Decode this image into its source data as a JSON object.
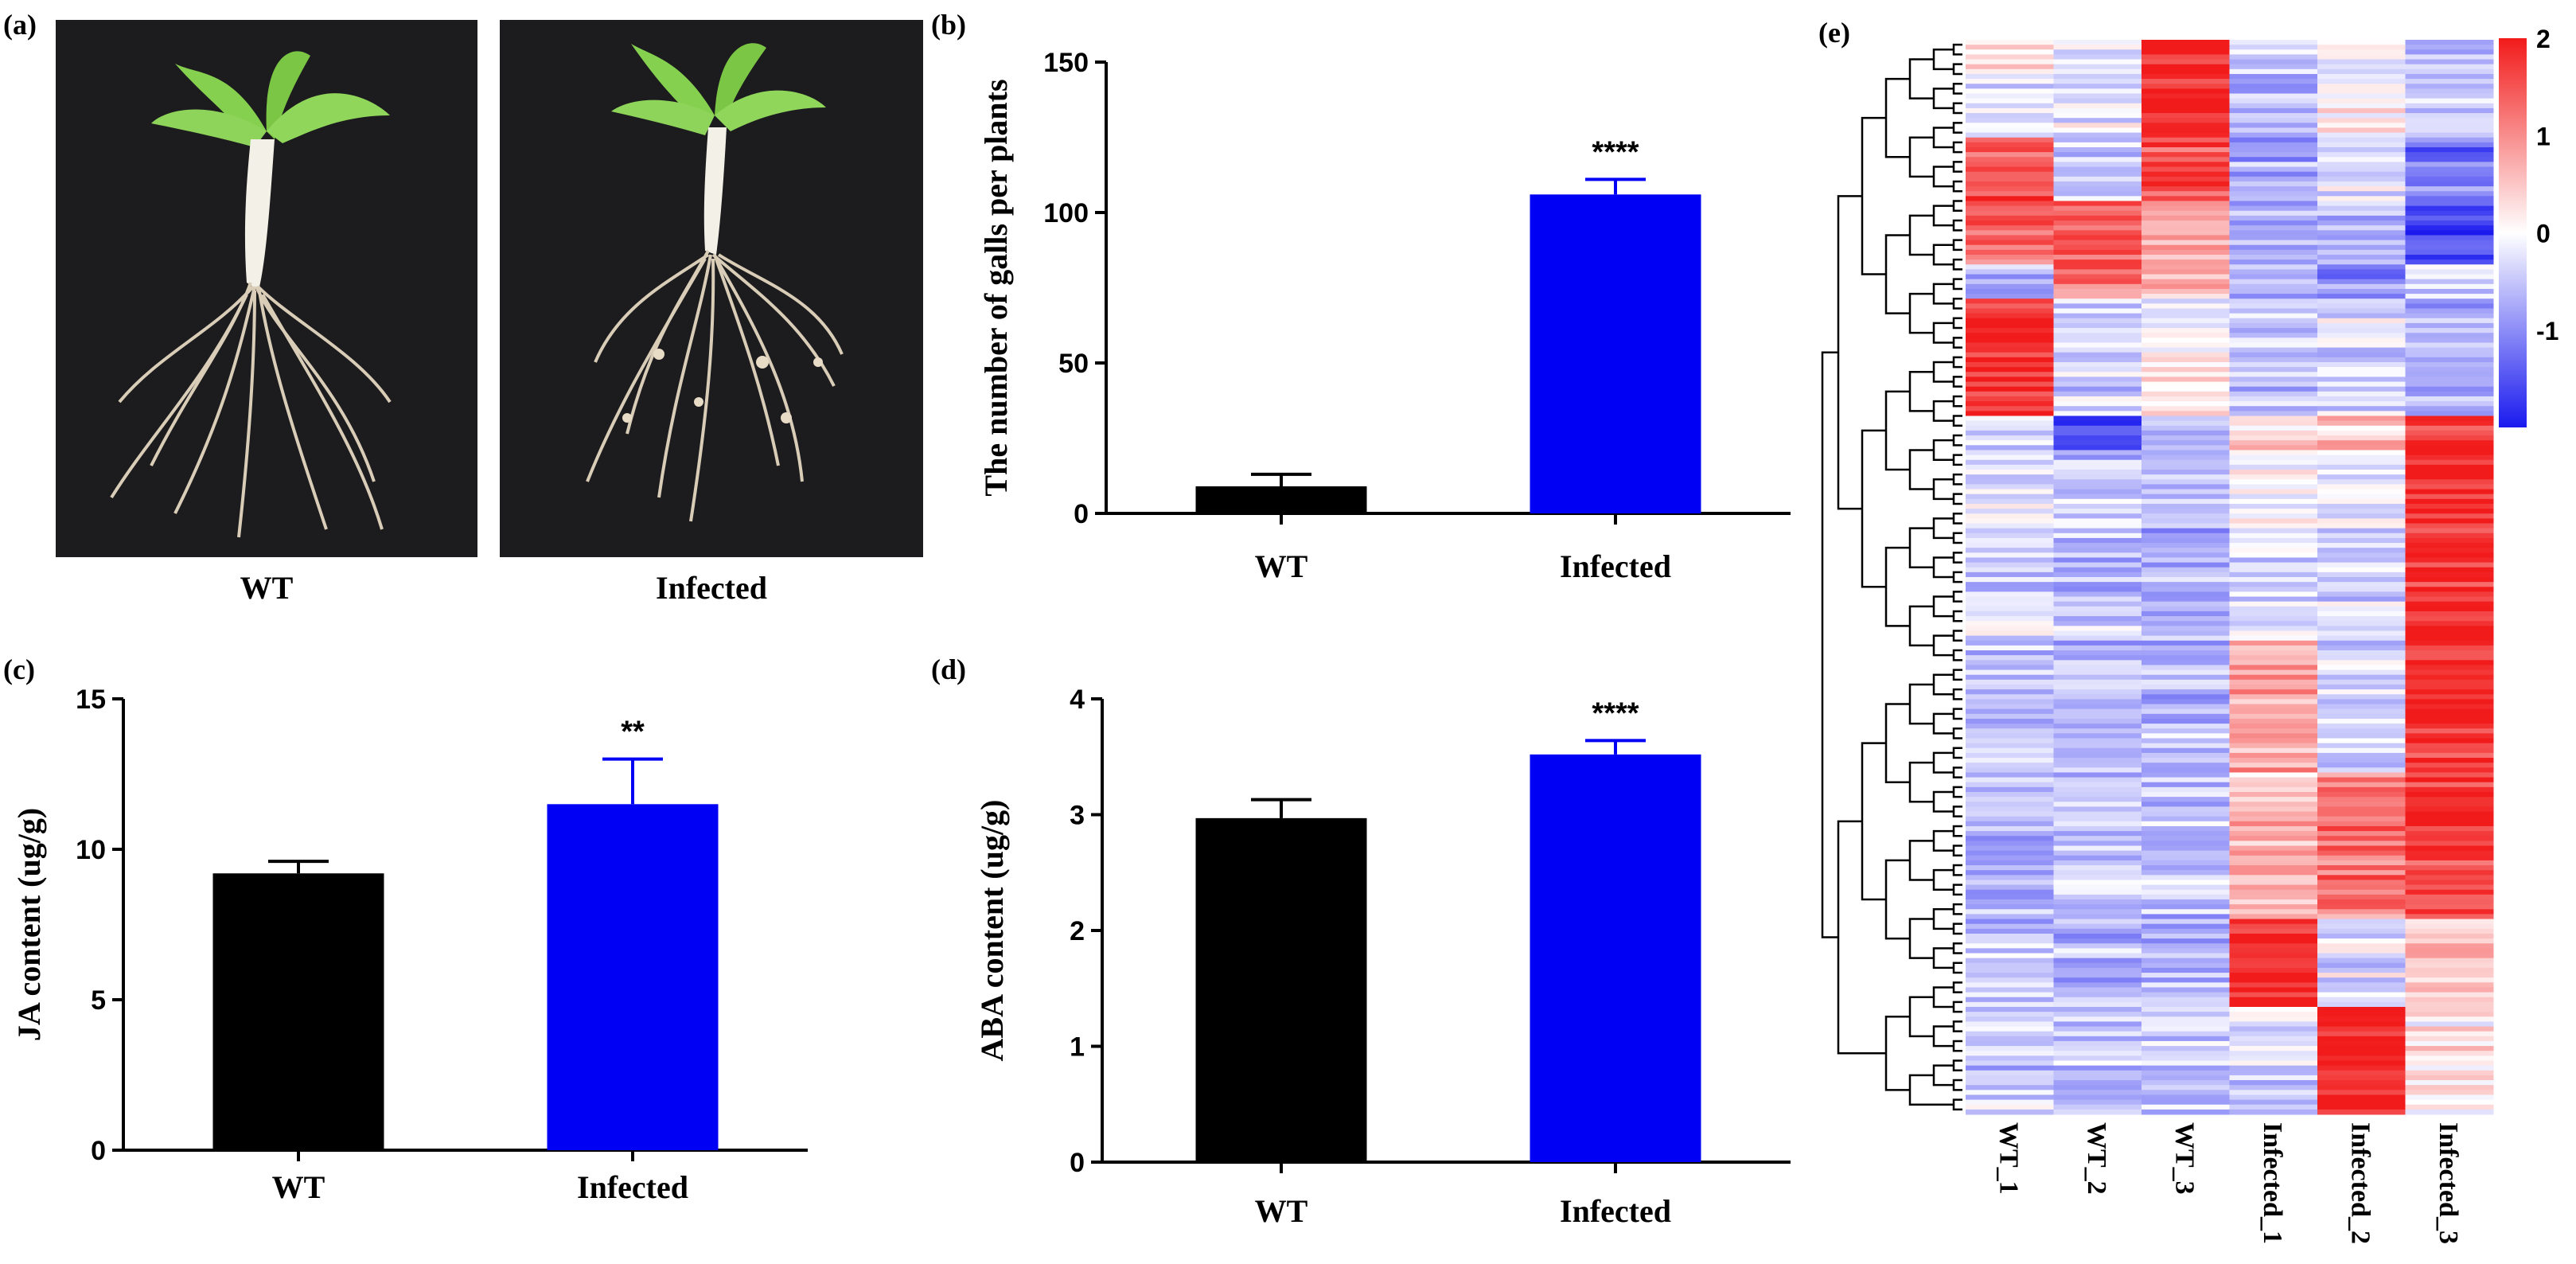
{
  "panels": {
    "a": {
      "letter": "(a)",
      "photos": [
        {
          "label": "WT"
        },
        {
          "label": "Infected"
        }
      ]
    },
    "b": {
      "letter": "(b)"
    },
    "c": {
      "letter": "(c)"
    },
    "d": {
      "letter": "(d)"
    },
    "e": {
      "letter": "(e)"
    }
  },
  "colors": {
    "wt_bar": "#000000",
    "infected_bar": "#0000f5",
    "heat_high": "#f21b1b",
    "heat_mid": "#ffffff",
    "heat_low": "#1a1aef",
    "root_color": "#d9cdb8",
    "leaf_color": "#7fcb4a"
  },
  "chart_data": [
    {
      "id": "b",
      "type": "bar",
      "categories": [
        "WT",
        "Infected"
      ],
      "values": [
        9,
        106
      ],
      "errors": [
        4,
        5
      ],
      "significance": [
        "",
        "****"
      ],
      "ylabel": "The number of galls per plants",
      "ylim": [
        0,
        150
      ],
      "yticks": [
        0,
        50,
        100,
        150
      ]
    },
    {
      "id": "c",
      "type": "bar",
      "categories": [
        "WT",
        "Infected"
      ],
      "values": [
        9.2,
        11.5
      ],
      "errors": [
        0.4,
        1.5
      ],
      "significance": [
        "",
        "**"
      ],
      "ylabel": "JA content (ug/g)",
      "ylim": [
        0,
        15
      ],
      "yticks": [
        0,
        5,
        10,
        15
      ]
    },
    {
      "id": "d",
      "type": "bar",
      "categories": [
        "WT",
        "Infected"
      ],
      "values": [
        2.97,
        3.52
      ],
      "errors": [
        0.16,
        0.12
      ],
      "significance": [
        "",
        "****"
      ],
      "ylabel": "ABA content (ug/g)",
      "ylim": [
        0,
        4
      ],
      "yticks": [
        0,
        1,
        2,
        3,
        4
      ]
    },
    {
      "id": "e",
      "type": "heatmap",
      "columns": [
        "WT_1",
        "WT_2",
        "WT_3",
        "Infected_1",
        "Infected_2",
        "Infected_3"
      ],
      "color_range": [
        -2,
        2
      ],
      "colorbar_ticks": [
        2,
        1,
        0,
        -1
      ],
      "cluster_blocks": [
        {
          "rows_fraction": [
            0.0,
            0.03
          ],
          "levels": [
            0.2,
            -0.3,
            1.8,
            -0.4,
            -0.2,
            -0.6
          ]
        },
        {
          "rows_fraction": [
            0.03,
            0.09
          ],
          "levels": [
            -0.3,
            -0.2,
            1.9,
            -0.6,
            0.1,
            -0.5
          ]
        },
        {
          "rows_fraction": [
            0.09,
            0.15
          ],
          "levels": [
            1.5,
            -0.4,
            1.6,
            -0.8,
            -0.3,
            -1.2
          ]
        },
        {
          "rows_fraction": [
            0.15,
            0.21
          ],
          "levels": [
            1.4,
            1.5,
            0.8,
            -0.8,
            -0.7,
            -1.6
          ]
        },
        {
          "rows_fraction": [
            0.21,
            0.24
          ],
          "levels": [
            -0.6,
            1.2,
            0.6,
            -0.6,
            -0.9,
            -0.3
          ]
        },
        {
          "rows_fraction": [
            0.24,
            0.35
          ],
          "levels": [
            1.9,
            -0.3,
            0.1,
            -0.4,
            -0.3,
            -0.7
          ]
        },
        {
          "rows_fraction": [
            0.35,
            0.38
          ],
          "levels": [
            -0.4,
            -1.6,
            -0.6,
            0.3,
            0.5,
            1.8
          ]
        },
        {
          "rows_fraction": [
            0.38,
            0.56
          ],
          "levels": [
            -0.3,
            -0.5,
            -0.6,
            -0.2,
            -0.3,
            1.9
          ]
        },
        {
          "rows_fraction": [
            0.56,
            0.68
          ],
          "levels": [
            -0.5,
            -0.7,
            -0.6,
            0.8,
            -0.4,
            1.8
          ]
        },
        {
          "rows_fraction": [
            0.68,
            0.82
          ],
          "levels": [
            -0.6,
            -0.4,
            -0.5,
            0.6,
            1.2,
            1.6
          ]
        },
        {
          "rows_fraction": [
            0.82,
            0.9
          ],
          "levels": [
            -0.5,
            -0.6,
            -0.6,
            1.9,
            -0.3,
            0.4
          ]
        },
        {
          "rows_fraction": [
            0.9,
            1.0
          ],
          "levels": [
            -0.4,
            -0.5,
            -0.5,
            -0.3,
            1.9,
            0.2
          ]
        }
      ]
    }
  ]
}
